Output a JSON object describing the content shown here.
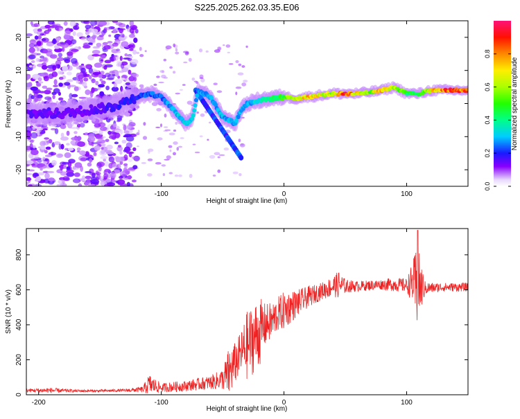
{
  "chart_data": [
    {
      "type": "heatmap",
      "title": "S225.2025.262.03.35.E06",
      "xlabel": "Height of straight line (km)",
      "ylabel": "Frequency (Hz)",
      "xlim": [
        -210,
        150
      ],
      "ylim": [
        -25,
        25
      ],
      "xticks": [
        -200,
        -100,
        0,
        100
      ],
      "yticks": [
        -20,
        -10,
        0,
        10,
        20
      ],
      "colorbar": {
        "label": "Normalized spectral amplitude",
        "ticks": [
          0.0,
          0.2,
          0.4,
          0.6,
          0.8
        ],
        "tick_labels": [
          "0.0",
          "0.2",
          "0.4",
          "0.6",
          "0.8"
        ],
        "range": [
          0,
          1
        ],
        "colormap": "rainbow"
      },
      "ridge": {
        "description_x": [
          -200,
          -180,
          -160,
          -140,
          -120,
          -110,
          -100,
          -90,
          -80,
          -75,
          -70,
          -60,
          -50,
          -40,
          -35,
          -30,
          -20,
          -10,
          0,
          10,
          20,
          30,
          40,
          50,
          60,
          70,
          80,
          90,
          100,
          110,
          120,
          130,
          140,
          150
        ],
        "frequency_hz": [
          -3,
          -3,
          -2,
          -1,
          2,
          3,
          2,
          -2,
          -6,
          -5,
          4,
          2,
          -4,
          -6,
          -2,
          0,
          1,
          1.5,
          2,
          1.5,
          2,
          2.5,
          3,
          3,
          3,
          3.5,
          4,
          5,
          3,
          3,
          4,
          4,
          4,
          4
        ],
        "amplitude": [
          0.15,
          0.15,
          0.15,
          0.18,
          0.2,
          0.25,
          0.25,
          0.3,
          0.35,
          0.3,
          0.3,
          0.3,
          0.3,
          0.3,
          0.3,
          0.3,
          0.35,
          0.4,
          0.5,
          0.7,
          0.75,
          0.7,
          0.6,
          0.9,
          0.7,
          0.6,
          0.8,
          0.65,
          0.5,
          0.45,
          0.7,
          0.85,
          0.9,
          0.85
        ]
      }
    },
    {
      "type": "line",
      "xlabel": "Height of straight line (km)",
      "ylabel": "SNR (10 * v/v)",
      "xlim": [
        -210,
        150
      ],
      "ylim": [
        0,
        950
      ],
      "xticks": [
        -200,
        -100,
        0,
        100
      ],
      "yticks": [
        0,
        200,
        400,
        600,
        800
      ],
      "series": [
        {
          "name": "SNR",
          "color": "#ee2222",
          "x": [
            -210,
            -190,
            -170,
            -150,
            -130,
            -115,
            -110,
            -100,
            -90,
            -80,
            -70,
            -60,
            -50,
            -45,
            -40,
            -35,
            -30,
            -25,
            -20,
            -15,
            -10,
            -5,
            0,
            10,
            20,
            30,
            40,
            45,
            50,
            60,
            70,
            80,
            90,
            100,
            105,
            108,
            110,
            115,
            120,
            130,
            140,
            150
          ],
          "y": [
            25,
            25,
            22,
            22,
            25,
            30,
            60,
            40,
            45,
            50,
            60,
            70,
            90,
            120,
            180,
            240,
            280,
            320,
            360,
            400,
            420,
            460,
            480,
            520,
            560,
            590,
            620,
            630,
            620,
            620,
            625,
            630,
            630,
            625,
            640,
            600,
            620,
            610,
            610,
            615,
            615,
            615
          ],
          "noise": [
            10,
            15,
            8,
            8,
            8,
            18,
            60,
            25,
            30,
            30,
            35,
            40,
            60,
            150,
            120,
            120,
            200,
            200,
            200,
            120,
            110,
            100,
            110,
            80,
            60,
            50,
            60,
            80,
            40,
            30,
            30,
            30,
            40,
            40,
            120,
            250,
            200,
            40,
            30,
            25,
            25,
            25
          ],
          "peak_label": "940 near x=110"
        }
      ]
    }
  ]
}
